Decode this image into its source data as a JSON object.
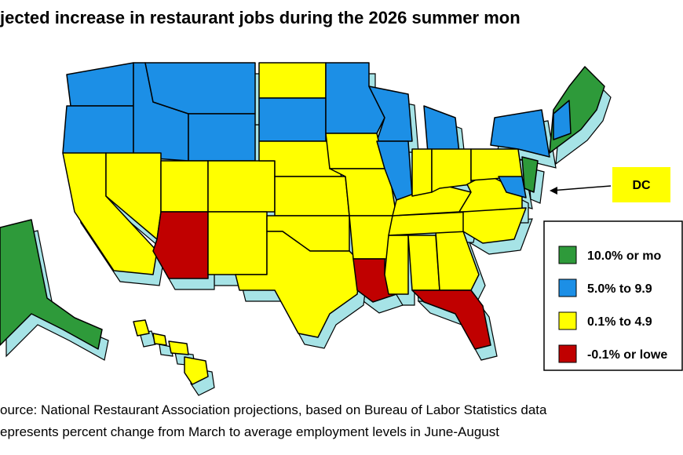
{
  "title": "jected increase in restaurant jobs during the 2026 summer mon",
  "callout": "DC",
  "legend": [
    {
      "label": "10.0% or mo",
      "color": "#2e9a3a"
    },
    {
      "label": "5.0% to 9.9",
      "color": "#1c8fe6"
    },
    {
      "label": "0.1% to 4.9",
      "color": "#ffff00"
    },
    {
      "label": "-0.1% or lowe",
      "color": "#c00000"
    }
  ],
  "source": [
    "ource: National Restaurant Association projections, based on Bureau of Labor Statistics data",
    "epresents percent change from March to average employment levels in June-August"
  ]
}
